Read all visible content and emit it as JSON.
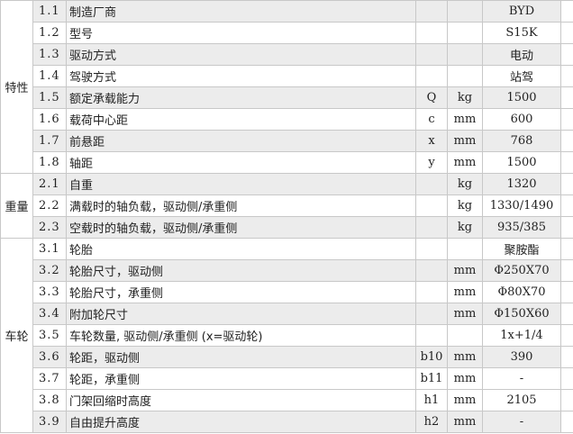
{
  "groups": [
    {
      "label": "特性",
      "rows": [
        {
          "no": "1.1",
          "desc": "制造厂商",
          "sym": "",
          "unit": "",
          "value": "BYD",
          "shaded": true
        },
        {
          "no": "1.2",
          "desc": "型号",
          "sym": "",
          "unit": "",
          "value": "S15K",
          "shaded": false
        },
        {
          "no": "1.3",
          "desc": "驱动方式",
          "sym": "",
          "unit": "",
          "value": "电动",
          "shaded": true
        },
        {
          "no": "1.4",
          "desc": "驾驶方式",
          "sym": "",
          "unit": "",
          "value": "站驾",
          "shaded": false
        },
        {
          "no": "1.5",
          "desc": "额定承载能力",
          "sym": "Q",
          "unit": "kg",
          "value": "1500",
          "shaded": true
        },
        {
          "no": "1.6",
          "desc": "载荷中心距",
          "sym": "c",
          "unit": "mm",
          "value": "600",
          "shaded": false
        },
        {
          "no": "1.7",
          "desc": "前悬距",
          "sym": "x",
          "unit": "mm",
          "value": "768",
          "shaded": true
        },
        {
          "no": "1.8",
          "desc": "轴距",
          "sym": "y",
          "unit": "mm",
          "value": "1500",
          "shaded": false
        }
      ]
    },
    {
      "label": "重量",
      "rows": [
        {
          "no": "2.1",
          "desc": "自重",
          "sym": "",
          "unit": "kg",
          "value": "1320",
          "shaded": true
        },
        {
          "no": "2.2",
          "desc": "满载时的轴负载，驱动侧/承重侧",
          "sym": "",
          "unit": "kg",
          "value": "1330/1490",
          "shaded": false
        },
        {
          "no": "2.3",
          "desc": "空载时的轴负载，驱动侧/承重侧",
          "sym": "",
          "unit": "kg",
          "value": "935/385",
          "shaded": true
        }
      ]
    },
    {
      "label": "车轮",
      "rows": [
        {
          "no": "3.1",
          "desc": "轮胎",
          "sym": "",
          "unit": "",
          "value": "聚胺酯",
          "shaded": false
        },
        {
          "no": "3.2",
          "desc": "轮胎尺寸，驱动侧",
          "sym": "",
          "unit": "mm",
          "value": "Φ250X70",
          "shaded": true
        },
        {
          "no": "3.3",
          "desc": "轮胎尺寸，承重侧",
          "sym": "",
          "unit": "mm",
          "value": "Φ80X70",
          "shaded": false
        },
        {
          "no": "3.4",
          "desc": "附加轮尺寸",
          "sym": "",
          "unit": "mm",
          "value": "Φ150X60",
          "shaded": true
        },
        {
          "no": "3.5",
          "desc": "车轮数量, 驱动侧/承重侧 (x=驱动轮)",
          "sym": "",
          "unit": "",
          "value": "1x+1/4",
          "shaded": false
        },
        {
          "no": "3.6",
          "desc": "轮距，驱动侧",
          "sym": "b10",
          "unit": "mm",
          "value": "390",
          "shaded": true
        },
        {
          "no": "3.7",
          "desc": "轮距，承重侧",
          "sym": "b11",
          "unit": "mm",
          "value": "-",
          "shaded": false
        },
        {
          "no": "3.8",
          "desc": "门架回缩时高度",
          "sym": "h1",
          "unit": "mm",
          "value": "2105",
          "shaded": false
        },
        {
          "no": "3.9",
          "desc": "自由提升高度",
          "sym": "h2",
          "unit": "mm",
          "value": "-",
          "shaded": true
        }
      ]
    }
  ]
}
